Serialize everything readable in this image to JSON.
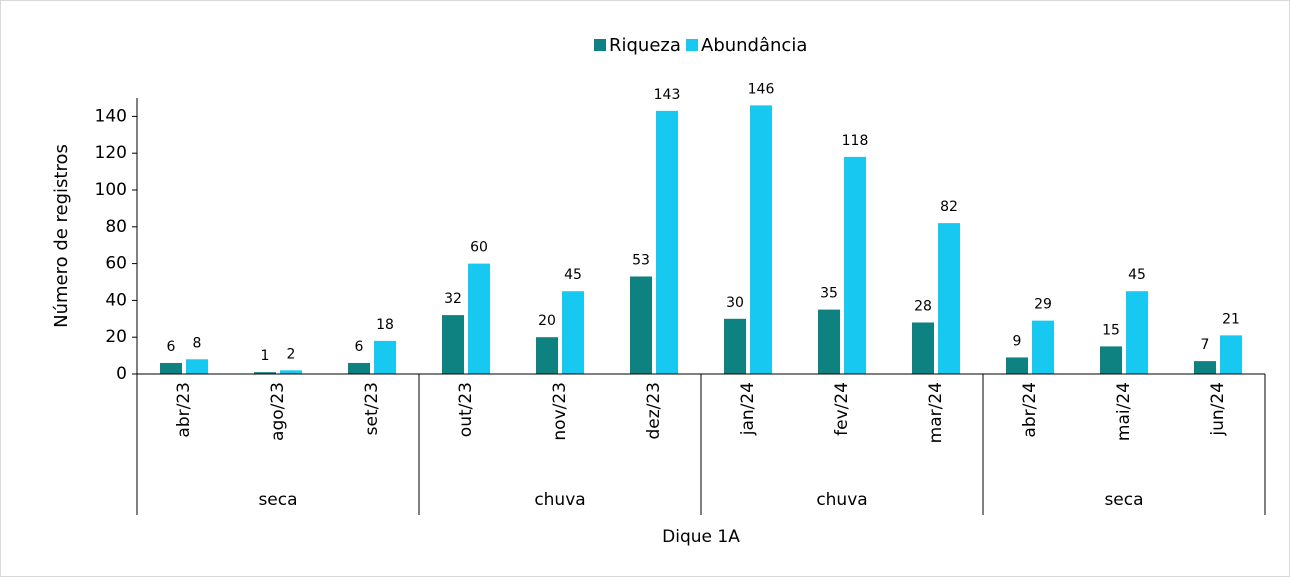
{
  "chart_data": {
    "type": "bar",
    "y_label": "Número de registros",
    "x_label": "Dique 1A",
    "categories": [
      "abr/23",
      "ago/23",
      "set/23",
      "out/23",
      "nov/23",
      "dez/23",
      "jan/24",
      "fev/24",
      "mar/24",
      "abr/24",
      "mai/24",
      "jun/24"
    ],
    "groups": [
      {
        "label": "seca",
        "span": 3
      },
      {
        "label": "chuva",
        "span": 3
      },
      {
        "label": "chuva",
        "span": 3
      },
      {
        "label": "seca",
        "span": 3
      }
    ],
    "series": [
      {
        "name": "Riqueza",
        "color": "#0e8280",
        "values": [
          6,
          1,
          6,
          32,
          20,
          53,
          30,
          35,
          28,
          9,
          15,
          7
        ]
      },
      {
        "name": "Abundância",
        "color": "#17c9f1",
        "values": [
          8,
          2,
          18,
          60,
          45,
          143,
          146,
          118,
          82,
          29,
          45,
          21
        ]
      }
    ],
    "ylim": [
      0,
      150
    ],
    "yticks": [
      0,
      20,
      40,
      60,
      80,
      100,
      120,
      140
    ],
    "legend": "top",
    "grid": false
  }
}
